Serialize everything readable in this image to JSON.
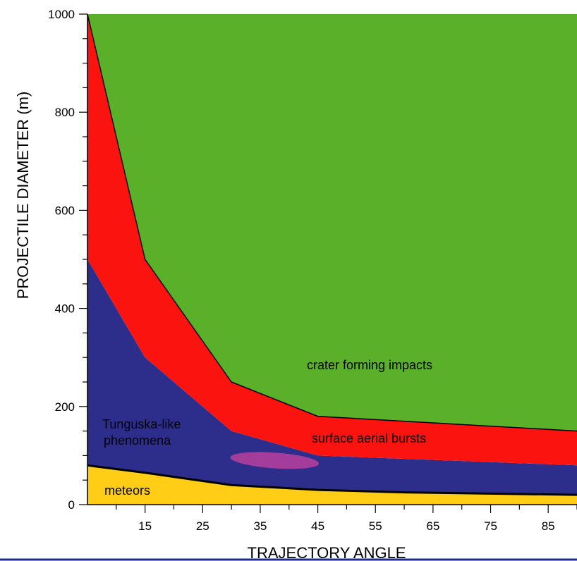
{
  "chart_data": {
    "type": "area",
    "xlabel": "TRAJECTORY ANGLE",
    "ylabel": "PROJECTILE DIAMETER (m)",
    "xlim": [
      5,
      90
    ],
    "ylim": [
      0,
      1000
    ],
    "x_ticks": [
      15,
      25,
      35,
      45,
      55,
      65,
      75,
      85
    ],
    "y_ticks": [
      0,
      200,
      400,
      600,
      800,
      1000
    ],
    "grid": false,
    "boundaries": [
      {
        "name": "meteors_upper",
        "x": [
          5,
          15,
          30,
          45,
          60,
          90
        ],
        "y": [
          80,
          65,
          40,
          30,
          25,
          20
        ]
      },
      {
        "name": "tunguska_upper",
        "x": [
          5,
          15,
          30,
          45,
          90
        ],
        "y": [
          500,
          300,
          150,
          100,
          80
        ]
      },
      {
        "name": "bursts_upper",
        "x": [
          5,
          15,
          30,
          45,
          90
        ],
        "y": [
          1000,
          500,
          250,
          180,
          150
        ]
      }
    ],
    "regions": [
      {
        "label": "meteors",
        "color": "#ffcc16"
      },
      {
        "label": "Tunguska-like\nphenomena",
        "color": "#2d2d8c"
      },
      {
        "label": "surface aerial bursts",
        "color": "#fa130f"
      },
      {
        "label": "crater forming impacts",
        "color": "#5bb02a"
      }
    ],
    "highlight": {
      "cx": 37.5,
      "cy": 90,
      "rx": 7.7,
      "ry": 16,
      "color": "#a43c9c"
    }
  }
}
